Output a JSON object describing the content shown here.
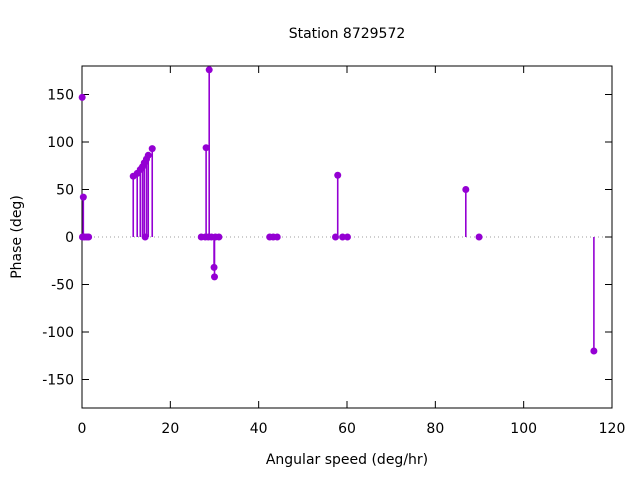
{
  "figure": {
    "background": "#ffffff"
  },
  "chart_data": {
    "type": "scatter",
    "style": "impulses-with-points",
    "title": "Station 8729572",
    "xlabel": "Angular speed (deg/hr)",
    "ylabel": "Phase (deg)",
    "xlim": [
      0,
      120
    ],
    "ylim": [
      -180,
      180
    ],
    "xticks": [
      0,
      20,
      40,
      60,
      80,
      100,
      120
    ],
    "yticks": [
      -150,
      -100,
      -50,
      0,
      50,
      100,
      150
    ],
    "grid": false,
    "legend_position": "none",
    "zero_line": true,
    "zero_line_color": "#9e9e9e",
    "series_color": "#9400d3",
    "border_color": "#000000",
    "points": [
      {
        "x": 0.04,
        "y": 147,
        "stem": false
      },
      {
        "x": 0.3,
        "y": 42
      },
      {
        "x": 0.1,
        "y": 0
      },
      {
        "x": 0.6,
        "y": 0
      },
      {
        "x": 1.1,
        "y": 0
      },
      {
        "x": 1.5,
        "y": 0
      },
      {
        "x": 11.6,
        "y": 64
      },
      {
        "x": 12.5,
        "y": 67
      },
      {
        "x": 13.2,
        "y": 71
      },
      {
        "x": 13.7,
        "y": 74
      },
      {
        "x": 14.1,
        "y": 78
      },
      {
        "x": 14.3,
        "y": 0
      },
      {
        "x": 14.6,
        "y": 82
      },
      {
        "x": 15.0,
        "y": 86
      },
      {
        "x": 15.9,
        "y": 93
      },
      {
        "x": 27.0,
        "y": 0
      },
      {
        "x": 27.9,
        "y": 0
      },
      {
        "x": 28.1,
        "y": 94
      },
      {
        "x": 28.6,
        "y": 0
      },
      {
        "x": 28.8,
        "y": 176
      },
      {
        "x": 29.3,
        "y": 0
      },
      {
        "x": 29.9,
        "y": -32
      },
      {
        "x": 30.0,
        "y": -42
      },
      {
        "x": 30.2,
        "y": 0
      },
      {
        "x": 31.0,
        "y": 0
      },
      {
        "x": 42.5,
        "y": 0
      },
      {
        "x": 43.3,
        "y": 0
      },
      {
        "x": 44.2,
        "y": 0
      },
      {
        "x": 57.4,
        "y": 0
      },
      {
        "x": 57.9,
        "y": 65
      },
      {
        "x": 59.0,
        "y": 0
      },
      {
        "x": 60.1,
        "y": 0
      },
      {
        "x": 86.9,
        "y": 50
      },
      {
        "x": 89.9,
        "y": 0
      },
      {
        "x": 115.9,
        "y": -120
      }
    ]
  }
}
